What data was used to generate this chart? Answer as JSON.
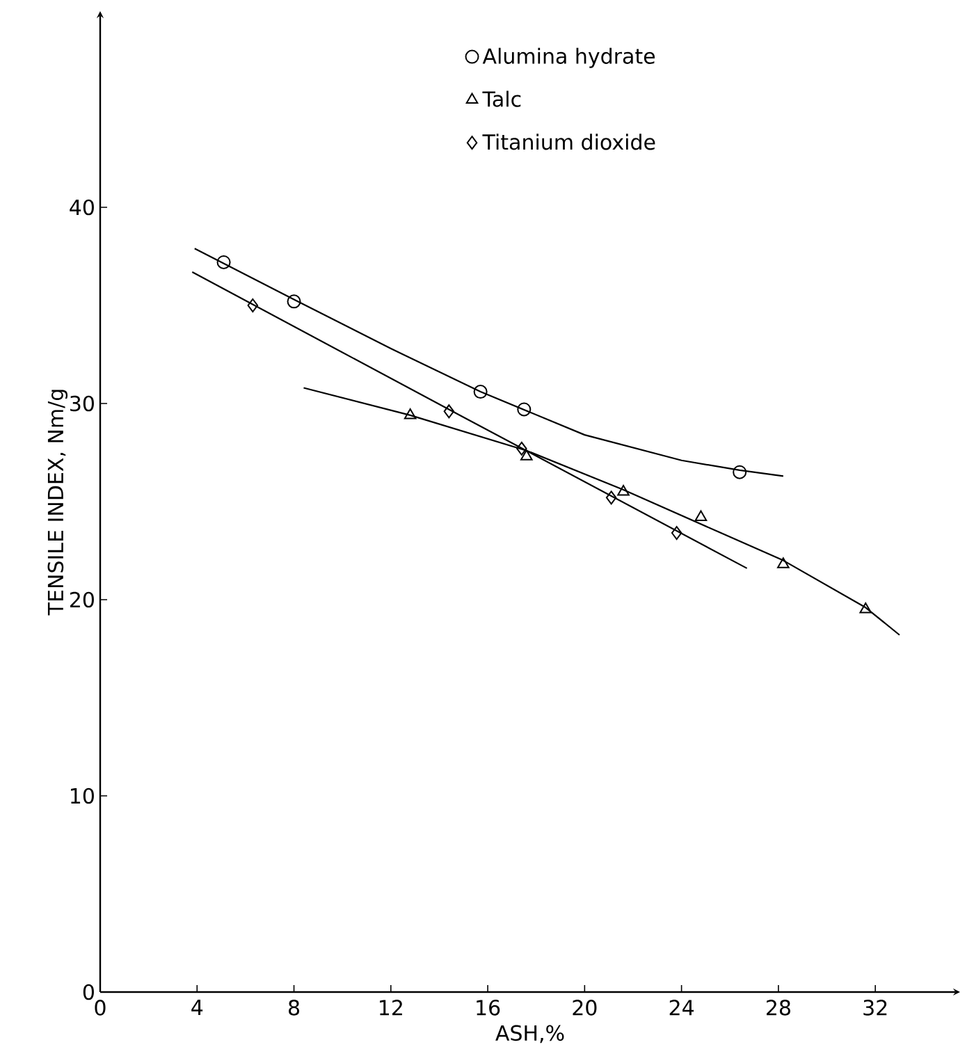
{
  "chart_data": {
    "type": "scatter",
    "xlabel": "ASH,%",
    "ylabel": "TENSILE INDEX, Nm/g",
    "xlim": [
      0,
      35.5
    ],
    "ylim": [
      0,
      50
    ],
    "xticks": [
      0,
      4,
      8,
      12,
      16,
      20,
      24,
      28,
      32
    ],
    "yticks": [
      0,
      10,
      20,
      30,
      40
    ],
    "grid": false,
    "legend": "top right",
    "series": [
      {
        "name": "Alumina hydrate",
        "marker": "circle",
        "color": "#000000",
        "x": [
          5.1,
          8.0,
          15.7,
          17.5,
          26.4
        ],
        "values": [
          37.2,
          35.2,
          30.6,
          29.7,
          26.5
        ]
      },
      {
        "name": "Talc",
        "marker": "triangle",
        "color": "#000000",
        "x": [
          12.8,
          17.6,
          21.6,
          24.8,
          28.2,
          31.6
        ],
        "values": [
          29.4,
          27.3,
          25.5,
          24.2,
          21.8,
          19.5
        ]
      },
      {
        "name": "Titanium dioxide",
        "marker": "diamond",
        "color": "#000000",
        "x": [
          6.3,
          14.4,
          17.4,
          21.1,
          23.8
        ],
        "values": [
          35.0,
          29.6,
          27.7,
          25.2,
          23.4
        ]
      },
      {
        "type": "line",
        "marker": "none",
        "line_style": "solid",
        "color": "#000000",
        "x": [
          3.9,
          8.0,
          12.0,
          15.7,
          20.0,
          24.0,
          26.4,
          28.2
        ],
        "values": [
          37.9,
          35.3,
          32.8,
          30.6,
          28.4,
          27.1,
          26.6,
          26.3
        ]
      },
      {
        "type": "line",
        "marker": "none",
        "line_style": "solid",
        "color": "#000000",
        "x": [
          8.4,
          12.8,
          17.6,
          21.6,
          28.2,
          31.6,
          33.0
        ],
        "values": [
          30.8,
          29.4,
          27.6,
          25.6,
          22.0,
          19.6,
          18.2
        ]
      },
      {
        "type": "line",
        "marker": "none",
        "line_style": "solid",
        "color": "#000000",
        "x": [
          3.8,
          15.0,
          26.7
        ],
        "values": [
          36.7,
          29.3,
          21.6
        ]
      }
    ]
  }
}
